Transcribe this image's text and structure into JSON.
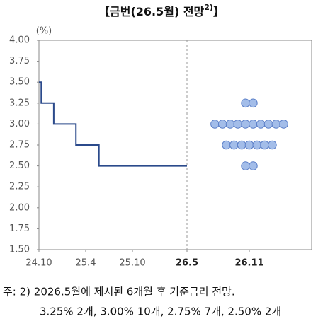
{
  "chart_data": {
    "type": "line",
    "title": {
      "main": "【금번(26.5월) 전망",
      "sup": "2)",
      "end": "】"
    },
    "y_unit": "(%)",
    "x": [
      0,
      0.3,
      1.9,
      4.75,
      7.7,
      19
    ],
    "series": [
      {
        "color": "#2b4a8b",
        "values": [
          3.5,
          3.25,
          3.0,
          2.75,
          2.5,
          2.5
        ]
      }
    ],
    "step": true,
    "dots": {
      "x": 27,
      "levels": [
        3.25,
        3.0,
        2.75,
        2.5
      ],
      "counts": [
        2,
        10,
        7,
        2
      ],
      "color": "#a3bde9",
      "edge": "#5b7fc8"
    },
    "divider_x": 19,
    "xlim": [
      0,
      35
    ],
    "xticks": [
      {
        "value": 0,
        "label": "24.10"
      },
      {
        "value": 6,
        "label": "25.4"
      },
      {
        "value": 12,
        "label": "25.10"
      },
      {
        "value": 19,
        "label": "26.5",
        "bold": true
      },
      {
        "value": 27,
        "label": "26.11",
        "bold": true
      }
    ],
    "ylim": [
      1.5,
      4.0
    ],
    "yticks": [
      {
        "value": 1.5,
        "label": "1.50"
      },
      {
        "value": 1.75,
        "label": "1.75"
      },
      {
        "value": 2.0,
        "label": "2.00"
      },
      {
        "value": 2.25,
        "label": "2.25"
      },
      {
        "value": 2.5,
        "label": "2.50"
      },
      {
        "value": 2.75,
        "label": "2.75"
      },
      {
        "value": 3.0,
        "label": "3.00"
      },
      {
        "value": 3.25,
        "label": "3.25"
      },
      {
        "value": 3.5,
        "label": "3.50"
      },
      {
        "value": 3.75,
        "label": "3.75"
      },
      {
        "value": 4.0,
        "label": "4.00"
      }
    ],
    "footnote": [
      "주: 2) 2026.5월에 제시된 6개월 후 기준금리 전망.",
      "3.25% 2개, 3.00% 10개, 2.75% 7개, 2.50% 2개"
    ]
  }
}
